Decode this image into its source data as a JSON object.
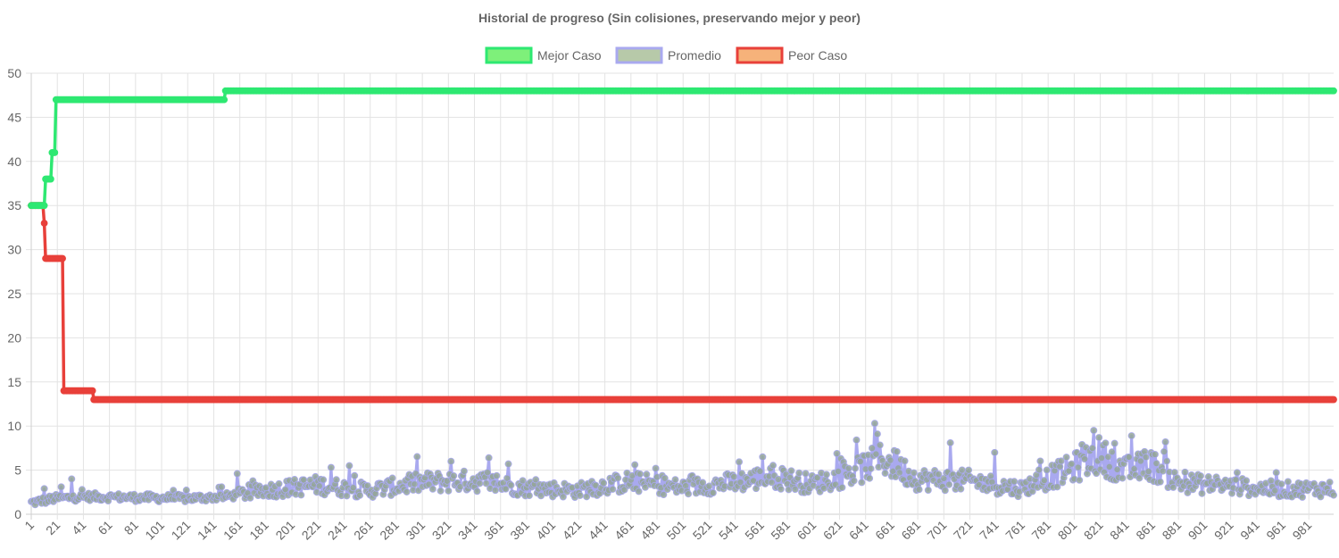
{
  "chart_data": {
    "type": "line",
    "title": "Historial de progreso (Sin colisiones, preservando mejor y peor)",
    "xlabel": "",
    "ylabel": "",
    "x_range": [
      1,
      1000
    ],
    "ylim": [
      0,
      50
    ],
    "y_ticks": [
      0,
      5,
      10,
      15,
      20,
      25,
      30,
      35,
      40,
      45,
      50
    ],
    "x_tick_labels": [
      "1",
      "21",
      "41",
      "61",
      "81",
      "101",
      "121",
      "141",
      "161",
      "181",
      "201",
      "221",
      "241",
      "261",
      "281",
      "301",
      "321",
      "341",
      "361",
      "381",
      "401",
      "421",
      "441",
      "461",
      "481",
      "501",
      "521",
      "541",
      "561",
      "581",
      "601",
      "621",
      "641",
      "661",
      "681",
      "701",
      "721",
      "741",
      "761",
      "781",
      "801",
      "821",
      "841",
      "861",
      "881",
      "901",
      "921",
      "941",
      "961",
      "981"
    ],
    "grid": true,
    "legend_position": "top-center",
    "series": [
      {
        "name": "Mejor Caso",
        "border_color": "#2ee872",
        "fill_color": "#7ef07a",
        "steps": [
          [
            1,
            35
          ],
          [
            11,
            35
          ],
          [
            12,
            38
          ],
          [
            16,
            38
          ],
          [
            17,
            41
          ],
          [
            19,
            41
          ],
          [
            20,
            47
          ],
          [
            149,
            47
          ],
          [
            150,
            48
          ],
          [
            1000,
            48
          ]
        ]
      },
      {
        "name": "Promedio",
        "border_color": "#a9a9ef",
        "fill_color": "#b7c9a9",
        "point_color": "#94a69a",
        "trend_points": [
          [
            1,
            1.3
          ],
          [
            20,
            1.8
          ],
          [
            45,
            2.0
          ],
          [
            80,
            1.9
          ],
          [
            120,
            1.8
          ],
          [
            150,
            2.0
          ],
          [
            180,
            2.7
          ],
          [
            220,
            3.3
          ],
          [
            260,
            2.7
          ],
          [
            300,
            3.6
          ],
          [
            340,
            3.8
          ],
          [
            380,
            3.0
          ],
          [
            420,
            2.7
          ],
          [
            460,
            3.7
          ],
          [
            500,
            3.0
          ],
          [
            540,
            3.6
          ],
          [
            570,
            4.3
          ],
          [
            600,
            3.4
          ],
          [
            630,
            4.6
          ],
          [
            655,
            6.3
          ],
          [
            680,
            4.0
          ],
          [
            720,
            3.8
          ],
          [
            760,
            2.9
          ],
          [
            800,
            5.2
          ],
          [
            820,
            6.7
          ],
          [
            840,
            4.9
          ],
          [
            860,
            5.6
          ],
          [
            880,
            3.6
          ],
          [
            920,
            3.2
          ],
          [
            960,
            2.8
          ],
          [
            1000,
            2.9
          ]
        ],
        "spikes": [
          [
            11,
            2.9
          ],
          [
            24,
            3.1
          ],
          [
            32,
            4.0
          ],
          [
            147,
            3.1
          ],
          [
            159,
            4.6
          ],
          [
            231,
            5.3
          ],
          [
            245,
            5.5
          ],
          [
            323,
            6.0
          ],
          [
            352,
            6.4
          ],
          [
            367,
            5.7
          ],
          [
            480,
            5.2
          ],
          [
            562,
            6.5
          ],
          [
            648,
            10.3
          ],
          [
            650,
            9.1
          ],
          [
            665,
            7.1
          ],
          [
            706,
            8.1
          ],
          [
            740,
            7.0
          ],
          [
            807,
            7.9
          ],
          [
            816,
            9.5
          ],
          [
            845,
            8.9
          ],
          [
            870,
            7.1
          ]
        ]
      },
      {
        "name": "Peor Caso",
        "border_color": "#e8403a",
        "fill_color": "#f6b27a",
        "steps": [
          [
            1,
            35
          ],
          [
            10,
            35
          ],
          [
            11,
            33
          ],
          [
            12,
            29
          ],
          [
            25,
            29
          ],
          [
            26,
            14
          ],
          [
            48,
            14
          ],
          [
            49,
            13
          ],
          [
            1000,
            13
          ]
        ]
      }
    ]
  }
}
